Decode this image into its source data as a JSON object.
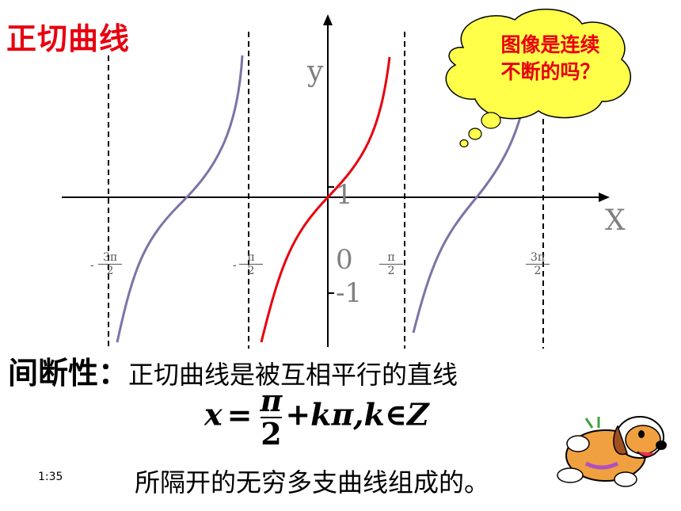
{
  "title": "正切曲线",
  "bubble": {
    "line1": "图像是连续",
    "line2": "不断的吗？"
  },
  "axes": {
    "x_label": "X",
    "y_label": "y",
    "y_tick_top": "1",
    "y_tick_zero": "0",
    "y_tick_bottom": "-1",
    "ticks": [
      {
        "sign": "-",
        "num": "3π",
        "den": "2"
      },
      {
        "sign": "-",
        "num": "π",
        "den": "2"
      },
      {
        "sign": "",
        "num": "π",
        "den": "2"
      },
      {
        "sign": "",
        "num": "3π",
        "den": "2"
      }
    ]
  },
  "text": {
    "heading": "间断性：",
    "sentence1": "正切曲线是被互相平行的直线",
    "formula_x": "x",
    "formula_eq": "=",
    "formula_num": "π",
    "formula_den": "2",
    "formula_rest": "+kπ,k∈Z",
    "sentence2": "所隔开的无穷多支曲线组成的。"
  },
  "time": "1:35",
  "colors": {
    "red": "#e8000e",
    "purple": "#7e72a6",
    "bubble": "#ffff4a"
  }
}
